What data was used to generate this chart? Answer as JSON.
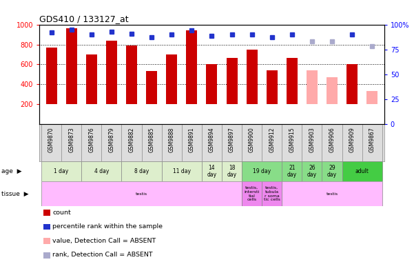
{
  "title": "GDS410 / 133127_at",
  "samples": [
    "GSM9870",
    "GSM9873",
    "GSM9876",
    "GSM9879",
    "GSM9882",
    "GSM9885",
    "GSM9888",
    "GSM9891",
    "GSM9894",
    "GSM9897",
    "GSM9900",
    "GSM9912",
    "GSM9915",
    "GSM9903",
    "GSM9906",
    "GSM9909",
    "GSM9867"
  ],
  "bar_values": [
    770,
    960,
    700,
    840,
    790,
    535,
    700,
    940,
    600,
    665,
    745,
    540,
    665,
    540,
    470,
    600,
    330
  ],
  "bar_absent": [
    false,
    false,
    false,
    false,
    false,
    false,
    false,
    false,
    false,
    false,
    false,
    false,
    false,
    true,
    true,
    false,
    true
  ],
  "percentile_values": [
    92,
    95,
    90,
    93,
    91,
    87,
    90,
    94,
    89,
    90,
    90,
    87,
    90,
    83,
    83,
    90,
    78
  ],
  "percentile_absent": [
    false,
    false,
    false,
    false,
    false,
    false,
    false,
    false,
    false,
    false,
    false,
    false,
    false,
    true,
    true,
    false,
    true
  ],
  "bar_color_present": "#cc0000",
  "bar_color_absent": "#ffaaaa",
  "dot_color_present": "#2233cc",
  "dot_color_absent": "#aaaacc",
  "age_groups": [
    {
      "label": "1 day",
      "start": 0,
      "end": 2,
      "color": "#ddeecc"
    },
    {
      "label": "4 day",
      "start": 2,
      "end": 4,
      "color": "#ddeecc"
    },
    {
      "label": "8 day",
      "start": 4,
      "end": 6,
      "color": "#ddeecc"
    },
    {
      "label": "11 day",
      "start": 6,
      "end": 8,
      "color": "#ddeecc"
    },
    {
      "label": "14\nday",
      "start": 8,
      "end": 9,
      "color": "#ddeecc"
    },
    {
      "label": "18\nday",
      "start": 9,
      "end": 10,
      "color": "#ddeecc"
    },
    {
      "label": "19 day",
      "start": 10,
      "end": 12,
      "color": "#88dd88"
    },
    {
      "label": "21\nday",
      "start": 12,
      "end": 13,
      "color": "#88dd88"
    },
    {
      "label": "26\nday",
      "start": 13,
      "end": 14,
      "color": "#88dd88"
    },
    {
      "label": "29\nday",
      "start": 14,
      "end": 15,
      "color": "#88dd88"
    },
    {
      "label": "adult",
      "start": 15,
      "end": 17,
      "color": "#44cc44"
    }
  ],
  "tissue_groups": [
    {
      "label": "testis",
      "start": 0,
      "end": 10,
      "color": "#ffbbff"
    },
    {
      "label": "testis,\nintersti\ntial\ncells",
      "start": 10,
      "end": 11,
      "color": "#ee88ee"
    },
    {
      "label": "testis,\ntubula\nr soma\ntic cells",
      "start": 11,
      "end": 12,
      "color": "#ee88ee"
    },
    {
      "label": "testis",
      "start": 12,
      "end": 17,
      "color": "#ffbbff"
    }
  ],
  "legend_items": [
    {
      "color": "#cc0000",
      "label": "count"
    },
    {
      "color": "#2233cc",
      "label": "percentile rank within the sample"
    },
    {
      "color": "#ffaaaa",
      "label": "value, Detection Call = ABSENT"
    },
    {
      "color": "#aaaacc",
      "label": "rank, Detection Call = ABSENT"
    }
  ],
  "ymin": 0,
  "ymax": 1000,
  "bar_bottom": 200
}
